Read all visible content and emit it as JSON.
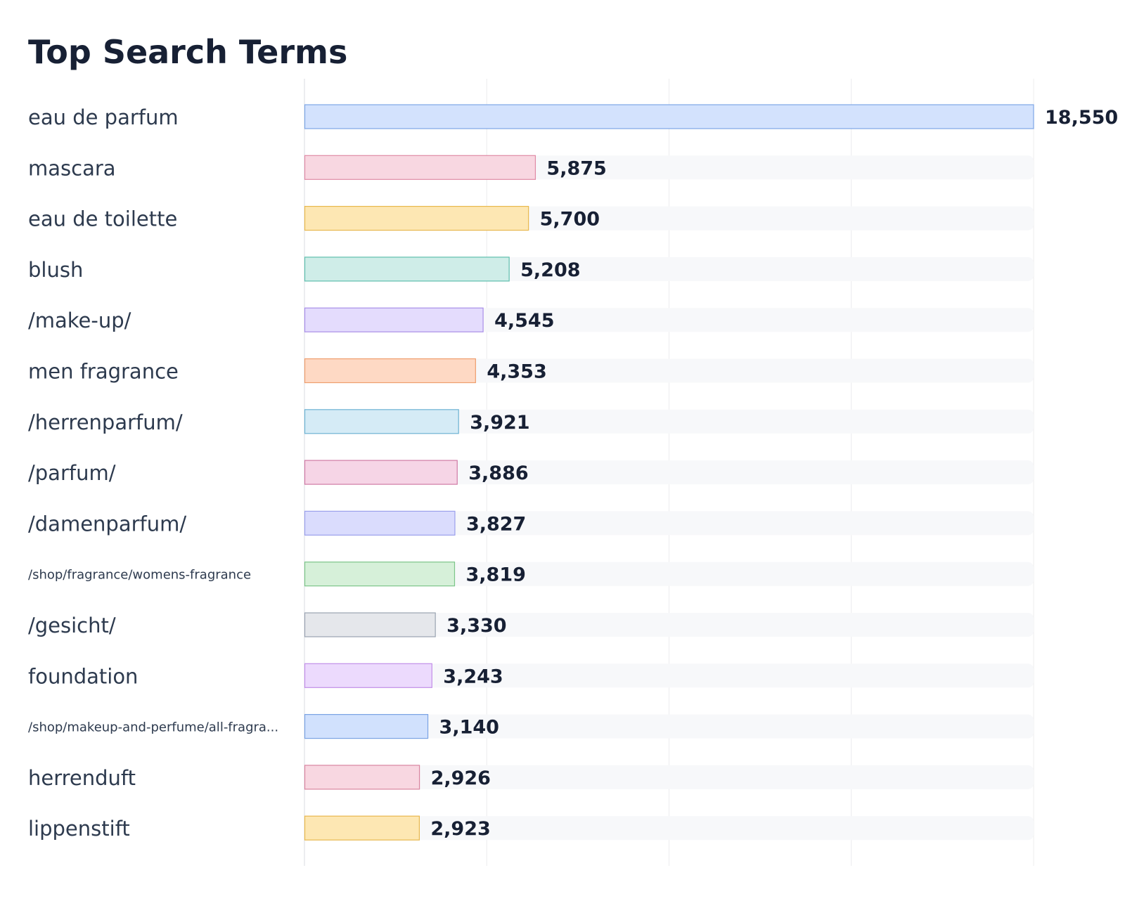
{
  "chart_data": {
    "type": "bar",
    "orientation": "horizontal",
    "title": "Top Search Terms",
    "xlabel": "",
    "ylabel": "",
    "xlim": [
      0,
      18550
    ],
    "grid": true,
    "categories": [
      "eau de parfum",
      "mascara",
      "eau de toilette",
      "blush",
      "/make-up/",
      "men fragrance",
      "/herrenparfum/",
      "/parfum/",
      "/damenparfum/",
      "/shop/fragrance/womens-fragrance",
      "/gesicht/",
      "foundation",
      "/shop/makeup-and-perfume/all-fragra...",
      "herrenduft",
      "lippenstift"
    ],
    "values": [
      18550,
      5875,
      5700,
      5208,
      4545,
      4353,
      3921,
      3886,
      3827,
      3819,
      3330,
      3243,
      3140,
      2926,
      2923
    ],
    "value_labels": [
      "18,550",
      "5,875",
      "5,700",
      "5,208",
      "4,545",
      "4,353",
      "3,921",
      "3,886",
      "3,827",
      "3,819",
      "3,330",
      "3,243",
      "3,140",
      "2,926",
      "2,923"
    ],
    "bar_colors": [
      {
        "fill": "#d3e2fd",
        "stroke": "#7ea6e6"
      },
      {
        "fill": "#f8d7e1",
        "stroke": "#e08aa5"
      },
      {
        "fill": "#fde7b3",
        "stroke": "#e8b84e"
      },
      {
        "fill": "#cfede8",
        "stroke": "#5fbfae"
      },
      {
        "fill": "#e4dcfd",
        "stroke": "#a88ee8"
      },
      {
        "fill": "#fed9c4",
        "stroke": "#ee9e6e"
      },
      {
        "fill": "#d5ebf6",
        "stroke": "#6db3d3"
      },
      {
        "fill": "#f6d5e6",
        "stroke": "#d07aa5"
      },
      {
        "fill": "#dadcfd",
        "stroke": "#9ba0ec"
      },
      {
        "fill": "#d6f0d9",
        "stroke": "#7cc589"
      },
      {
        "fill": "#e5e7eb",
        "stroke": "#9aa3b1"
      },
      {
        "fill": "#ecdafd",
        "stroke": "#c28ee8"
      },
      {
        "fill": "#d1e1fd",
        "stroke": "#7aa3e3"
      },
      {
        "fill": "#f8d7e1",
        "stroke": "#d9849f"
      },
      {
        "fill": "#fde7b3",
        "stroke": "#e8b84e"
      }
    ],
    "track_color": "#f7f8fa",
    "grid_color": "#ececee"
  }
}
